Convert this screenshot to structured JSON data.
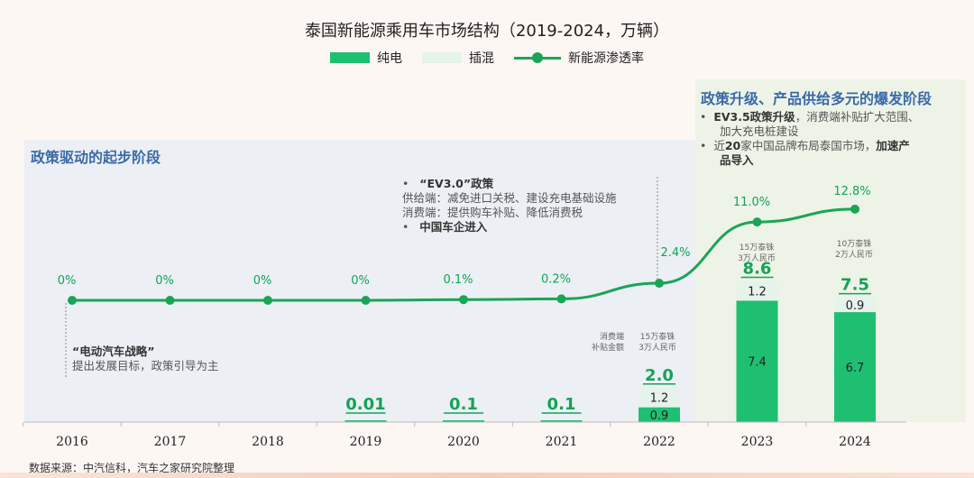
{
  "title": "泰国新能源乘用车市场结构（2019-2024，万辆）",
  "legend": {
    "bev": "纯电",
    "phev": "插混",
    "rate": "新能源渗透率"
  },
  "stage1": {
    "title": "政策驱动的起步阶段"
  },
  "stage2": {
    "title": "政策升级、产品供给多元的爆发阶段",
    "b1_bold": "EV3.5政策升级",
    "b1_rest": "，消费端补贴扩大范围、",
    "b1_line2": "加大充电桩建设",
    "b2_part1": "近",
    "b2_bold1": "20",
    "b2_part2": "家中国品牌布局泰国市场，",
    "b2_bold2": "加速产",
    "b2_line2": "品导入"
  },
  "annotation_ev30": {
    "head": "“EV3.0”政策",
    "line1": "供给端：减免进口关税、建设充电基础设施",
    "line2": "消费端：提供购车补贴、降低消费税",
    "line3": "中国车企进入"
  },
  "annotation_2016": {
    "head": "“电动汽车战略”",
    "line1": "提出发展目标，政策引导为主"
  },
  "subsidy": {
    "label_left_1": "消费端",
    "label_left_2": "补贴金额",
    "y2022_1": "15万泰铢",
    "y2022_2": "3万人民币",
    "y2023_1": "15万泰铢",
    "y2023_2": "3万人民币",
    "y2024_1": "10万泰铢",
    "y2024_2": "2万人民币"
  },
  "source": "数据来源：中汽信科，汽车之家研究院整理",
  "colors": {
    "bev": "#1fbf72",
    "phev": "#e5f3ea",
    "line": "#1aa556",
    "stage1_bg": "#eceff4",
    "stage2_bg": "#eef3e7",
    "stage_title": "#3a6aa8"
  },
  "chart_data": {
    "type": "bar",
    "categories": [
      "2016",
      "2017",
      "2018",
      "2019",
      "2020",
      "2021",
      "2022",
      "2023",
      "2024"
    ],
    "series": [
      {
        "name": "纯电",
        "values": [
          null,
          null,
          null,
          null,
          null,
          null,
          0.9,
          7.4,
          6.7
        ]
      },
      {
        "name": "插混",
        "values": [
          null,
          null,
          null,
          null,
          null,
          null,
          1.2,
          1.2,
          0.9
        ]
      },
      {
        "name": "新能源渗透率",
        "type": "line",
        "values": [
          0,
          0,
          0,
          0,
          0.1,
          0.2,
          2.4,
          11.0,
          12.8
        ]
      }
    ],
    "totals": [
      "",
      "",
      "",
      "0.01",
      "0.1",
      "0.1",
      "2.0",
      "8.6",
      "7.5"
    ],
    "rate_labels": [
      "0%",
      "0%",
      "0%",
      "0%",
      "0.1%",
      "0.2%",
      "2.4%",
      "11.0%",
      "12.8%"
    ],
    "value_labels": {
      "bev": [
        "",
        "",
        "",
        "",
        "",
        "",
        "0.9",
        "7.4",
        "6.7"
      ],
      "phev": [
        "",
        "",
        "",
        "",
        "",
        "",
        "1.2",
        "1.2",
        "0.9"
      ]
    }
  }
}
